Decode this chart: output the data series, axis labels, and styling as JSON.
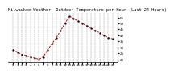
{
  "title": "Milwaukee Weather  Outdoor Temperature per Hour (Last 24 Hours)",
  "hours": [
    0,
    1,
    2,
    3,
    4,
    5,
    6,
    7,
    8,
    9,
    10,
    11,
    12,
    13,
    14,
    15,
    16,
    17,
    18,
    19,
    20,
    21,
    22,
    23
  ],
  "temps": [
    28,
    26,
    24,
    23,
    22,
    21,
    20,
    22,
    28,
    33,
    38,
    44,
    50,
    56,
    54,
    52,
    50,
    48,
    46,
    44,
    42,
    40,
    38,
    37
  ],
  "line_color": "#cc0000",
  "marker_color": "#000000",
  "bg_color": "#ffffff",
  "grid_color": "#999999",
  "ylim_min": 18,
  "ylim_max": 59,
  "yticks": [
    20,
    25,
    30,
    35,
    40,
    45,
    50,
    55
  ],
  "title_fontsize": 3.8,
  "tick_fontsize": 3.0
}
